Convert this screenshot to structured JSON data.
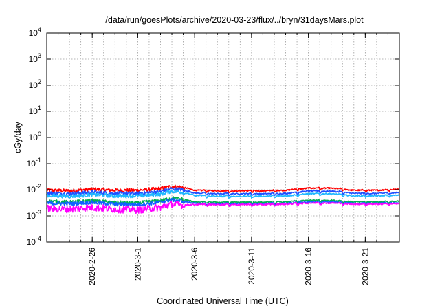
{
  "chart_data": {
    "type": "line",
    "title": "/data/run/goesPlots/archive/2020-03-23/flux/../bryn/31daysMars.plot",
    "xlabel": "Coordinated Universal Time (UTC)",
    "ylabel": "cGy/day",
    "yscale": "log",
    "ylim": [
      0.0001,
      10000
    ],
    "y_ticks": [
      {
        "value": 0.0001,
        "base": "10",
        "exp": "-4"
      },
      {
        "value": 0.001,
        "base": "10",
        "exp": "-3"
      },
      {
        "value": 0.01,
        "base": "10",
        "exp": "-2"
      },
      {
        "value": 0.1,
        "base": "10",
        "exp": "-1"
      },
      {
        "value": 1,
        "base": "10",
        "exp": "0"
      },
      {
        "value": 10,
        "base": "10",
        "exp": "1"
      },
      {
        "value": 100,
        "base": "10",
        "exp": "2"
      },
      {
        "value": 1000,
        "base": "10",
        "exp": "3"
      },
      {
        "value": 10000,
        "base": "10",
        "exp": "4"
      }
    ],
    "xlim": [
      "2020-02-22",
      "2020-03-24"
    ],
    "x_ticks": [
      "2020-2-26",
      "2020-3-1",
      "2020-3-6",
      "2020-3-11",
      "2020-3-16",
      "2020-3-21"
    ],
    "grid": true,
    "series": [
      {
        "color": "#ff0000",
        "x": [
          "2020-02-22",
          "2020-02-24",
          "2020-02-26",
          "2020-02-28",
          "2020-03-01",
          "2020-03-03",
          "2020-03-04",
          "2020-03-05",
          "2020-03-06",
          "2020-03-08",
          "2020-03-10",
          "2020-03-12",
          "2020-03-14",
          "2020-03-16",
          "2020-03-18",
          "2020-03-20",
          "2020-03-22",
          "2020-03-24"
        ],
        "values": [
          0.0095,
          0.009,
          0.0105,
          0.0095,
          0.0095,
          0.011,
          0.0135,
          0.0125,
          0.0095,
          0.009,
          0.009,
          0.009,
          0.0095,
          0.0115,
          0.0115,
          0.0095,
          0.0095,
          0.0105
        ]
      },
      {
        "color": "#1f4fff",
        "x": [
          "2020-02-22",
          "2020-02-24",
          "2020-02-26",
          "2020-02-28",
          "2020-03-01",
          "2020-03-03",
          "2020-03-04",
          "2020-03-05",
          "2020-03-06",
          "2020-03-08",
          "2020-03-10",
          "2020-03-12",
          "2020-03-14",
          "2020-03-16",
          "2020-03-18",
          "2020-03-20",
          "2020-03-22",
          "2020-03-24"
        ],
        "values": [
          0.0075,
          0.007,
          0.008,
          0.0072,
          0.0072,
          0.0085,
          0.011,
          0.01,
          0.0075,
          0.007,
          0.007,
          0.007,
          0.0072,
          0.0088,
          0.0088,
          0.0072,
          0.0072,
          0.0078
        ]
      },
      {
        "color": "#1fb8ff",
        "x": [
          "2020-02-22",
          "2020-02-24",
          "2020-02-26",
          "2020-02-28",
          "2020-03-01",
          "2020-03-03",
          "2020-03-04",
          "2020-03-05",
          "2020-03-06",
          "2020-03-08",
          "2020-03-10",
          "2020-03-12",
          "2020-03-14",
          "2020-03-16",
          "2020-03-18",
          "2020-03-20",
          "2020-03-22",
          "2020-03-24"
        ],
        "values": [
          0.006,
          0.0056,
          0.0064,
          0.0058,
          0.0058,
          0.0068,
          0.0088,
          0.008,
          0.006,
          0.0056,
          0.0056,
          0.0056,
          0.0058,
          0.007,
          0.007,
          0.0058,
          0.0058,
          0.0062
        ]
      },
      {
        "color": "#00b050",
        "x": [
          "2020-02-22",
          "2020-02-24",
          "2020-02-26",
          "2020-02-28",
          "2020-03-01",
          "2020-03-03",
          "2020-03-04",
          "2020-03-05",
          "2020-03-06",
          "2020-03-08",
          "2020-03-10",
          "2020-03-12",
          "2020-03-14",
          "2020-03-16",
          "2020-03-18",
          "2020-03-20",
          "2020-03-22",
          "2020-03-24"
        ],
        "values": [
          0.0036,
          0.0033,
          0.0038,
          0.0032,
          0.0031,
          0.0038,
          0.0048,
          0.0043,
          0.0034,
          0.0033,
          0.0033,
          0.0033,
          0.0034,
          0.0039,
          0.0039,
          0.0034,
          0.0034,
          0.0036
        ]
      },
      {
        "color": "#1060ff",
        "x": [
          "2020-02-22",
          "2020-02-24",
          "2020-02-26",
          "2020-02-28",
          "2020-03-01",
          "2020-03-03",
          "2020-03-04",
          "2020-03-05",
          "2020-03-06",
          "2020-03-08",
          "2020-03-10",
          "2020-03-12",
          "2020-03-14",
          "2020-03-16",
          "2020-03-18",
          "2020-03-20",
          "2020-03-22",
          "2020-03-24"
        ],
        "values": [
          0.0031,
          0.0029,
          0.0033,
          0.0028,
          0.0027,
          0.0033,
          0.0041,
          0.0037,
          0.003,
          0.0029,
          0.0029,
          0.0029,
          0.003,
          0.0034,
          0.0034,
          0.003,
          0.003,
          0.0031
        ]
      },
      {
        "color": "#ff00ff",
        "x": [
          "2020-02-22",
          "2020-02-24",
          "2020-02-26",
          "2020-02-28",
          "2020-03-01",
          "2020-03-03",
          "2020-03-04",
          "2020-03-05",
          "2020-03-06",
          "2020-03-08",
          "2020-03-10",
          "2020-03-12",
          "2020-03-14",
          "2020-03-16",
          "2020-03-18",
          "2020-03-20",
          "2020-03-22",
          "2020-03-24"
        ],
        "values": [
          0.0019,
          0.0018,
          0.0021,
          0.0018,
          0.0017,
          0.0021,
          0.0028,
          0.0026,
          0.0027,
          0.0027,
          0.0027,
          0.0027,
          0.0028,
          0.0031,
          0.0031,
          0.0028,
          0.0028,
          0.003
        ]
      }
    ]
  }
}
